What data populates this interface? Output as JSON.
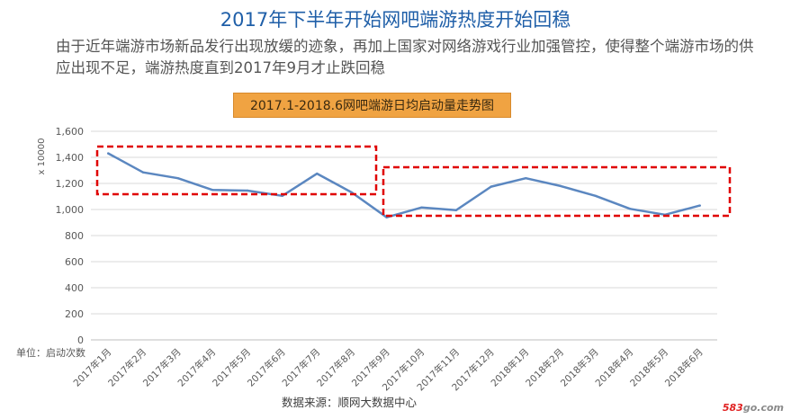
{
  "title": "2017年下半年开始网吧端游热度开始回稳",
  "subtitle": "由于近年端游市场新品发行出现放缓的迹象，再加上国家对网络游戏行业加强管控，使得整个端游市场的供应出现不足，端游热度直到2017年9月才止跌回稳",
  "chart_data": {
    "type": "line",
    "title": "2017.1-2018.6网吧端游日均启动量走势图",
    "ylabel": "x 10000",
    "unit_note": "单位：启动次数",
    "source": "数据来源：顺网大数据中心",
    "ylim": [
      0,
      1600
    ],
    "yticks": [
      0,
      200,
      400,
      600,
      800,
      1000,
      1200,
      1400,
      1600
    ],
    "ytick_labels": [
      "0",
      "200",
      "400",
      "600",
      "800",
      "1,000",
      "1,200",
      "1,400",
      "1,600"
    ],
    "grid": true,
    "categories": [
      "2017年1月",
      "2017年2月",
      "2017年3月",
      "2017年4月",
      "2017年5月",
      "2017年6月",
      "2017年7月",
      "2017年8月",
      "2017年9月",
      "2017年10月",
      "2017年11月",
      "2017年12月",
      "2018年1月",
      "2018年2月",
      "2018年3月",
      "2018年4月",
      "2018年5月",
      "2018年6月"
    ],
    "series": [
      {
        "values": [
          1430,
          1285,
          1240,
          1150,
          1145,
          1105,
          1275,
          1130,
          940,
          1015,
          995,
          1175,
          1240,
          1180,
          1105,
          1005,
          960,
          1030
        ],
        "color": "#5b87c0"
      }
    ],
    "highlight_color": "#e00000"
  },
  "watermark": {
    "number": "583",
    "suffix": "go.com"
  }
}
